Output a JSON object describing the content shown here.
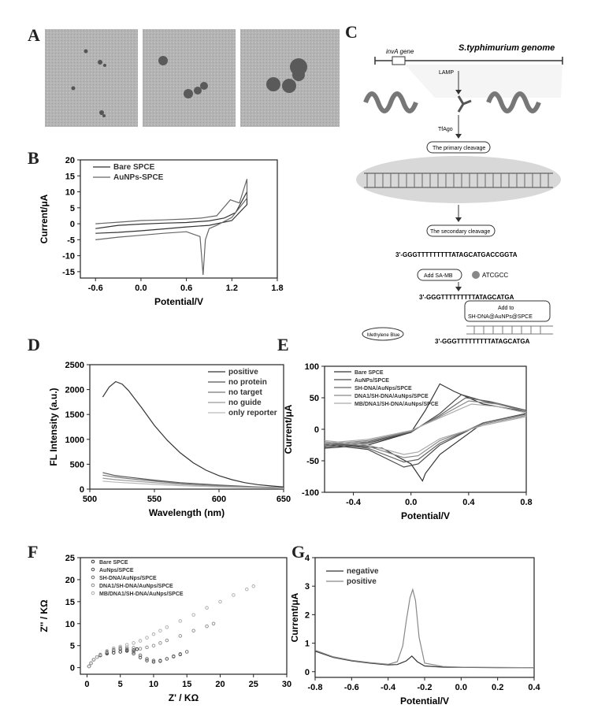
{
  "panels": {
    "A": {
      "label": "A"
    },
    "B": {
      "label": "B"
    },
    "C": {
      "label": "C"
    },
    "D": {
      "label": "D"
    },
    "E": {
      "label": "E"
    },
    "F": {
      "label": "F"
    },
    "G": {
      "label": "G"
    }
  },
  "schematic": {
    "genome_title": "S.typhimurium genome",
    "gene_label": "invA gene",
    "step_lamp": "LAMP",
    "step_tfago": "TfAgo",
    "primary_cleavage": "The primary cleavage",
    "secondary_cleavage": "The secondary cleavage",
    "seq_1": "3'-GGGTTTTTTTTTATAGCATGACCGGTA",
    "add_sa_mb": "Add SA-MB",
    "seq_fragment": "ATCGCC",
    "seq_2": "3'-GGGTTTTTTTTTATAGCATGA",
    "add_to": "Add to",
    "add_to_target": "SH-DNA@AuNPs@SPCE",
    "methylene_blue": "Methylene Blue",
    "seq_3": "3'-GGGTTTTTTTTTATAGCATGA"
  },
  "chart_data": [
    {
      "id": "B",
      "type": "line",
      "xlabel": "Potential/V",
      "ylabel": "Current/μA",
      "xlim": [
        -0.8,
        1.8
      ],
      "ylim": [
        -17,
        20
      ],
      "xticks": [
        -0.6,
        0.0,
        0.6,
        1.2,
        1.8
      ],
      "yticks": [
        20,
        15,
        10,
        5,
        0,
        -5,
        -10,
        -15
      ],
      "legend_position": "top-left",
      "series": [
        {
          "name": "Bare SPCE",
          "color": "#333333",
          "x": [
            -0.6,
            -0.3,
            0.0,
            0.3,
            0.6,
            0.9,
            1.1,
            1.25,
            1.4,
            1.4,
            1.2,
            0.9,
            0.6,
            0.3,
            0.0,
            -0.3,
            -0.6
          ],
          "y": [
            -1.5,
            -0.5,
            -0.1,
            0.2,
            0.4,
            0.9,
            1.8,
            3.5,
            10.0,
            6.0,
            1.0,
            -0.5,
            -1.0,
            -1.6,
            -2.2,
            -2.7,
            -3.0
          ]
        },
        {
          "name": "AuNPs-SPCE",
          "color": "#666666",
          "x": [
            -0.6,
            -0.3,
            0.0,
            0.3,
            0.6,
            0.8,
            1.0,
            1.18,
            1.3,
            1.4,
            1.4,
            1.2,
            1.0,
            0.9,
            0.85,
            0.82,
            0.78,
            0.6,
            0.3,
            0.0,
            -0.3,
            -0.6
          ],
          "y": [
            0.0,
            0.5,
            1.0,
            1.2,
            1.5,
            1.8,
            2.5,
            7.5,
            6.5,
            14.0,
            8.0,
            2.0,
            -0.5,
            -1.5,
            -5.0,
            -16.0,
            -4.0,
            -2.5,
            -3.0,
            -3.6,
            -4.2,
            -5.0
          ]
        }
      ]
    },
    {
      "id": "D",
      "type": "line",
      "xlabel": "Wavelength (nm)",
      "ylabel": "FL Intensity (a.u.)",
      "xlim": [
        500,
        650
      ],
      "ylim": [
        0,
        2500
      ],
      "xticks": [
        500,
        550,
        600,
        650
      ],
      "yticks": [
        2500,
        2000,
        1500,
        1000,
        500,
        0
      ],
      "legend_position": "top-right",
      "series": [
        {
          "name": "positive",
          "color": "#333333",
          "x": [
            510,
            515,
            520,
            525,
            530,
            540,
            550,
            560,
            570,
            580,
            590,
            600,
            610,
            620,
            630,
            640,
            650
          ],
          "y": [
            1850,
            2050,
            2160,
            2110,
            1980,
            1640,
            1280,
            980,
            730,
            530,
            380,
            270,
            190,
            130,
            90,
            65,
            45
          ]
        },
        {
          "name": "no protein",
          "color": "#555555",
          "x": [
            510,
            520,
            530,
            550,
            570,
            600,
            630,
            650
          ],
          "y": [
            330,
            270,
            240,
            180,
            130,
            80,
            45,
            30
          ]
        },
        {
          "name": "no target",
          "color": "#777777",
          "x": [
            510,
            520,
            530,
            550,
            570,
            600,
            630,
            650
          ],
          "y": [
            280,
            240,
            210,
            160,
            115,
            70,
            40,
            25
          ]
        },
        {
          "name": "no guide",
          "color": "#999999",
          "x": [
            510,
            520,
            530,
            550,
            570,
            600,
            630,
            650
          ],
          "y": [
            220,
            190,
            170,
            130,
            95,
            55,
            32,
            20
          ]
        },
        {
          "name": "only reporter",
          "color": "#bbbbbb",
          "x": [
            510,
            520,
            530,
            550,
            570,
            600,
            630,
            650
          ],
          "y": [
            160,
            140,
            125,
            95,
            70,
            42,
            25,
            15
          ]
        }
      ]
    },
    {
      "id": "E",
      "type": "line",
      "xlabel": "Potential/V",
      "ylabel": "Current/μA",
      "xlim": [
        -0.6,
        0.8
      ],
      "ylim": [
        -100,
        100
      ],
      "xticks": [
        -0.4,
        0.0,
        0.4,
        0.8
      ],
      "yticks": [
        100,
        50,
        0,
        -50,
        -100
      ],
      "legend_position": "top-left",
      "series": [
        {
          "name": "Bare SPCE",
          "color": "#333333",
          "x": [
            -0.6,
            -0.3,
            0.0,
            0.1,
            0.2,
            0.3,
            0.5,
            0.8,
            0.8,
            0.5,
            0.2,
            0.1,
            0.08,
            0.0,
            -0.2,
            -0.6
          ],
          "y": [
            -30,
            -25,
            -5,
            30,
            72,
            60,
            40,
            28,
            25,
            10,
            -40,
            -70,
            -82,
            -55,
            -30,
            -22
          ]
        },
        {
          "name": "AuNPs/SPCE",
          "color": "#4a4a4a",
          "x": [
            -0.6,
            -0.3,
            0.0,
            0.2,
            0.35,
            0.5,
            0.8,
            0.8,
            0.5,
            0.2,
            0.05,
            -0.05,
            -0.3,
            -0.6
          ],
          "y": [
            -28,
            -22,
            -5,
            25,
            55,
            45,
            30,
            25,
            10,
            -25,
            -55,
            -60,
            -32,
            -24
          ]
        },
        {
          "name": "SH-DNA/AuNps/SPCE",
          "color": "#666666",
          "x": [
            -0.6,
            -0.3,
            0.0,
            0.2,
            0.38,
            0.55,
            0.8,
            0.8,
            0.5,
            0.2,
            0.05,
            -0.05,
            -0.3,
            -0.6
          ],
          "y": [
            -26,
            -20,
            -4,
            22,
            50,
            44,
            30,
            24,
            10,
            -22,
            -48,
            -52,
            -30,
            -22
          ]
        },
        {
          "name": "DNA1/SH-DNA/AuNps/SPCE",
          "color": "#888888",
          "x": [
            -0.6,
            -0.3,
            0.0,
            0.2,
            0.4,
            0.6,
            0.8,
            0.8,
            0.5,
            0.2,
            0.05,
            -0.05,
            -0.3,
            -0.6
          ],
          "y": [
            -24,
            -18,
            -3,
            20,
            45,
            40,
            28,
            22,
            8,
            -18,
            -42,
            -45,
            -27,
            -20
          ]
        },
        {
          "name": "MB/DNA1/SH-DNA/AuNps/SPCE",
          "color": "#aaaaaa",
          "x": [
            -0.6,
            -0.3,
            0.0,
            0.2,
            0.42,
            0.6,
            0.8,
            0.8,
            0.5,
            0.2,
            0.05,
            -0.05,
            -0.3,
            -0.6
          ],
          "y": [
            -22,
            -16,
            -2,
            18,
            40,
            36,
            26,
            20,
            6,
            -15,
            -36,
            -40,
            -25,
            -18
          ]
        }
      ]
    },
    {
      "id": "F",
      "type": "scatter",
      "xlabel": "Z' / KΩ",
      "ylabel": "Z'' / KΩ",
      "xlim": [
        -1,
        30
      ],
      "ylim": [
        -1.5,
        25
      ],
      "xticks": [
        0,
        5,
        10,
        15,
        20,
        25,
        30
      ],
      "yticks": [
        25,
        20,
        15,
        10,
        5,
        0
      ],
      "legend_position": "top-left",
      "series": [
        {
          "name": "Bare SPCE",
          "color": "#333333",
          "x": [
            0.3,
            0.6,
            1,
            1.5,
            2,
            3,
            4,
            5,
            6,
            7,
            7.5
          ],
          "y": [
            0.3,
            1.0,
            1.8,
            2.4,
            2.8,
            3.2,
            3.4,
            3.6,
            3.8,
            4.0,
            4.2
          ]
        },
        {
          "name": "AuNps/SPCE",
          "color": "#4a4a4a",
          "x": [
            0.3,
            0.6,
            1,
            1.5,
            2,
            3,
            4,
            5,
            6,
            7,
            8,
            9,
            10,
            11,
            12,
            13,
            14
          ],
          "y": [
            0.3,
            1.0,
            1.8,
            2.4,
            2.8,
            3.4,
            3.9,
            4.2,
            4.0,
            3.2,
            2.3,
            1.6,
            1.3,
            1.5,
            2.0,
            2.5,
            3.0
          ]
        },
        {
          "name": "SH-DNA/AuNps/SPCE",
          "color": "#666666",
          "x": [
            0.3,
            0.6,
            1,
            1.5,
            2,
            3,
            4,
            5,
            6,
            7,
            8,
            9,
            10,
            11,
            12,
            13,
            14,
            15
          ],
          "y": [
            0.3,
            1.0,
            1.8,
            2.4,
            2.9,
            3.5,
            4.0,
            4.3,
            4.2,
            3.6,
            2.8,
            2.0,
            1.6,
            1.6,
            2.0,
            2.6,
            3.1,
            3.6
          ]
        },
        {
          "name": "DNA1/SH-DNA/AuNps/SPCE",
          "color": "#888888",
          "x": [
            0.3,
            0.6,
            1,
            1.5,
            2,
            3,
            4,
            5,
            6,
            7,
            8,
            9,
            10,
            11,
            12,
            14,
            16,
            18,
            19
          ],
          "y": [
            0.3,
            1.0,
            1.8,
            2.4,
            2.9,
            3.6,
            4.1,
            4.5,
            4.6,
            4.5,
            4.3,
            4.6,
            5.0,
            5.6,
            6.2,
            7.2,
            8.4,
            9.4,
            10.0
          ]
        },
        {
          "name": "MB/DNA1/SH-DNA/AuNps/SPCE",
          "color": "#aaaaaa",
          "x": [
            0.3,
            0.6,
            1,
            1.5,
            2,
            3,
            4,
            5,
            6,
            7,
            8,
            9,
            10,
            11,
            12,
            14,
            16,
            18,
            20,
            22,
            24,
            25
          ],
          "y": [
            0.3,
            1.0,
            1.8,
            2.4,
            3.0,
            3.8,
            4.4,
            4.8,
            5.2,
            5.6,
            6.1,
            6.8,
            7.6,
            8.4,
            9.2,
            10.6,
            12.0,
            13.6,
            15.0,
            16.5,
            17.8,
            18.5
          ]
        }
      ]
    },
    {
      "id": "G",
      "type": "line",
      "xlabel": "Potential/V",
      "ylabel": "Current/μA",
      "xlim": [
        -0.8,
        0.4
      ],
      "ylim": [
        -0.2,
        4
      ],
      "xticks": [
        -0.8,
        -0.6,
        -0.4,
        -0.2,
        0.0,
        0.2,
        0.4
      ],
      "yticks": [
        4,
        3,
        2,
        1,
        0
      ],
      "legend_position": "top-left",
      "series": [
        {
          "name": "negative",
          "color": "#333333",
          "x": [
            -0.8,
            -0.7,
            -0.6,
            -0.5,
            -0.4,
            -0.35,
            -0.3,
            -0.27,
            -0.24,
            -0.2,
            -0.1,
            0.0,
            0.2,
            0.4
          ],
          "y": [
            0.72,
            0.5,
            0.38,
            0.3,
            0.24,
            0.25,
            0.38,
            0.55,
            0.35,
            0.2,
            0.16,
            0.15,
            0.14,
            0.14
          ]
        },
        {
          "name": "positive",
          "color": "#888888",
          "x": [
            -0.8,
            -0.7,
            -0.6,
            -0.5,
            -0.4,
            -0.35,
            -0.32,
            -0.3,
            -0.28,
            -0.265,
            -0.25,
            -0.23,
            -0.2,
            -0.1,
            0.0,
            0.2,
            0.4
          ],
          "y": [
            0.75,
            0.52,
            0.4,
            0.32,
            0.26,
            0.35,
            0.9,
            1.8,
            2.6,
            2.88,
            2.5,
            1.2,
            0.3,
            0.18,
            0.16,
            0.15,
            0.14
          ]
        }
      ]
    }
  ]
}
